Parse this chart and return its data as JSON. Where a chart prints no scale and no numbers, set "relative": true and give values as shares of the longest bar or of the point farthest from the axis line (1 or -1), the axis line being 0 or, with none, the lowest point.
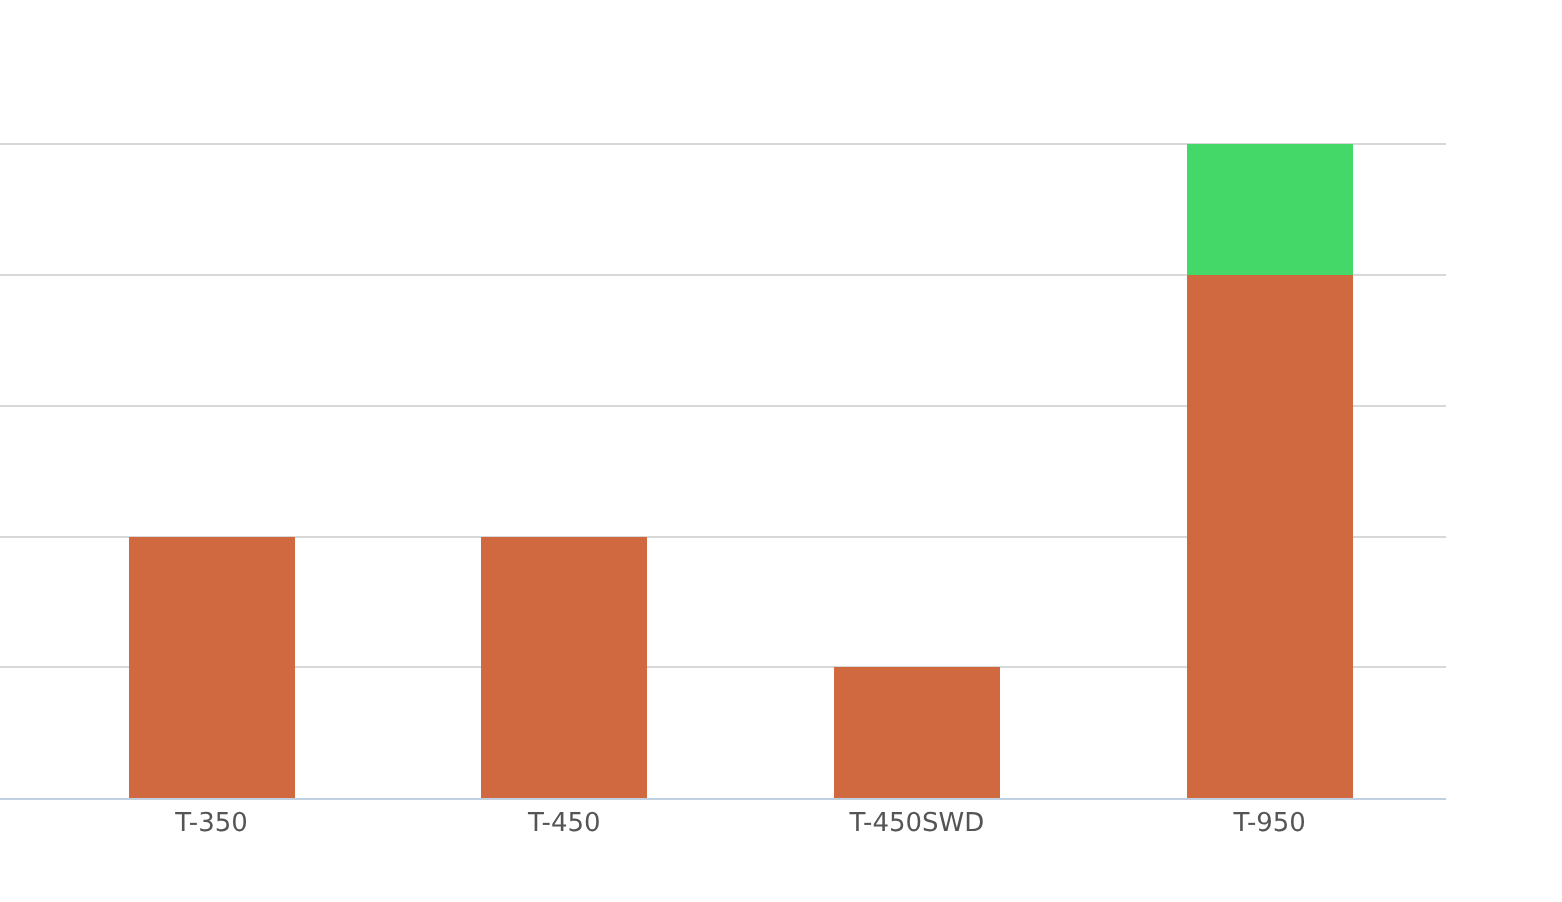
{
  "chart_data": {
    "type": "bar",
    "stacked": true,
    "relative": true,
    "grid": "y",
    "categories": [
      "T-350",
      "T-450",
      "T-450SWD",
      "T-950"
    ],
    "series": [
      {
        "color": "#d0693f",
        "values": [
          0.4,
          0.4,
          0.2,
          0.8
        ]
      },
      {
        "color": "#44d868",
        "values": [
          0,
          0,
          0,
          0.2
        ]
      }
    ]
  }
}
